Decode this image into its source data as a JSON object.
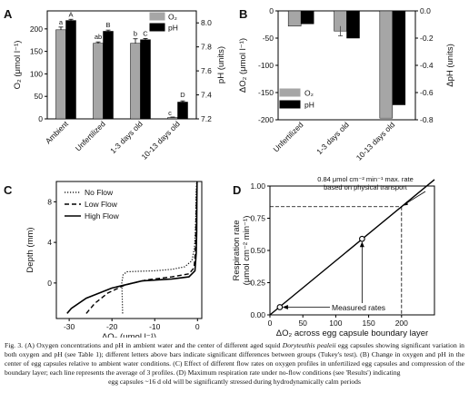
{
  "figure": {
    "panels": {
      "A": {
        "letter": "A"
      },
      "B": {
        "letter": "B"
      },
      "C": {
        "letter": "C"
      },
      "D": {
        "letter": "D"
      }
    }
  },
  "chart_data": [
    {
      "panel": "A",
      "type": "bar",
      "categories": [
        "Ambient",
        "Unfertilized",
        "1-3 days old",
        "10-13 days old"
      ],
      "series": [
        {
          "name": "O₂",
          "values": [
            198,
            168,
            168,
            3
          ],
          "errors": [
            6,
            3,
            10,
            1
          ],
          "letters": [
            "a",
            "ab",
            "b",
            "c"
          ],
          "color": "#a6a6a6",
          "axis": "left"
        },
        {
          "name": "pH",
          "values": [
            8.02,
            7.93,
            7.86,
            7.34
          ],
          "errors": [
            0.01,
            0.01,
            0.01,
            0.01
          ],
          "letters": [
            "A",
            "B",
            "C",
            "D"
          ],
          "color": "#000000",
          "axis": "right"
        }
      ],
      "ylabel": "O₂ (μmol l⁻¹)",
      "ylabel_right": "pH (units)",
      "ylim": [
        0,
        240
      ],
      "ylim_right": [
        7.2,
        8.1
      ],
      "yticks": [
        0,
        50,
        100,
        150,
        200
      ],
      "yticks_right": [
        "7.2",
        "7.4",
        "7.6",
        "7.8",
        "8.0"
      ],
      "legend": [
        "O₂",
        "pH"
      ],
      "legend_position": "top-right"
    },
    {
      "panel": "B",
      "type": "bar",
      "categories": [
        "Unfertilized",
        "1-3 days old",
        "10-13 days old"
      ],
      "series": [
        {
          "name": "O₂",
          "values": [
            -28,
            -37,
            -197
          ],
          "errors": [
            1,
            9,
            1
          ],
          "color": "#a6a6a6",
          "axis": "left"
        },
        {
          "name": "pH",
          "values": [
            -0.095,
            -0.2,
            -0.69
          ],
          "errors": [
            0.004,
            0.004,
            0.004
          ],
          "color": "#000000",
          "axis": "right"
        }
      ],
      "ylabel": "ΔO₂ (μmol l⁻¹)",
      "ylabel_right": "ΔpH (units)",
      "ylim": [
        -200,
        0
      ],
      "ylim_right": [
        -0.8,
        0
      ],
      "yticks": [
        "0",
        "-50",
        "-100",
        "-150",
        "-200"
      ],
      "yticks_right": [
        "0.0",
        "-0.2",
        "-0.4",
        "-0.6",
        "-0.8"
      ],
      "legend": [
        "O₂",
        "pH"
      ],
      "legend_position": "bottom-left"
    },
    {
      "panel": "C",
      "type": "line",
      "xlabel": "ΔO₂ (μmol l⁻¹)",
      "ylabel": "Depth (mm)",
      "xlim": [
        -33,
        1
      ],
      "ylim": [
        -3.5,
        10
      ],
      "xticks": [
        "-30",
        "-20",
        "-10",
        "0"
      ],
      "yticks": [
        "0",
        "4",
        "8"
      ],
      "series": [
        {
          "name": "No Flow",
          "style": "dotted",
          "x": [
            -17.5,
            -17.6,
            -17.7,
            -17.4,
            -16.5,
            -14,
            -10,
            -6,
            -3,
            -1.3,
            -0.7,
            -0.5,
            -0.4,
            -0.35,
            -0.3,
            -0.2
          ],
          "y": [
            -3,
            -1.5,
            0,
            0.8,
            1.1,
            1.15,
            1.2,
            1.35,
            1.6,
            2.2,
            3.5,
            5,
            6.5,
            8,
            9,
            10
          ]
        },
        {
          "name": "Low Flow",
          "style": "dashed",
          "x": [
            -26,
            -24,
            -21,
            -17,
            -12,
            -6,
            -2,
            -0.8,
            -0.5,
            -0.4,
            -0.3,
            -0.2,
            -0.1
          ],
          "y": [
            -3,
            -2,
            -1,
            -0.2,
            0.3,
            0.6,
            0.9,
            1.5,
            3,
            5,
            7,
            9,
            10
          ]
        },
        {
          "name": "High Flow",
          "style": "solid",
          "x": [
            -30.5,
            -29.5,
            -26,
            -20,
            -13,
            -6,
            -2,
            -0.6,
            -0.3,
            -0.2,
            -0.15,
            -0.1
          ],
          "y": [
            -3,
            -2.5,
            -1.5,
            -0.5,
            0.2,
            0.4,
            0.6,
            1.2,
            3,
            5,
            8,
            10
          ]
        }
      ],
      "legend": [
        "No Flow",
        "Low Flow",
        "High Flow"
      ],
      "legend_position": "top-left"
    },
    {
      "panel": "D",
      "type": "line",
      "xlabel": "ΔO₂ across egg capsule boundary layer",
      "ylabel": "Respiration rate (μmol cm⁻² min⁻¹)",
      "xlim": [
        0,
        250
      ],
      "ylim": [
        0,
        1.0
      ],
      "xticks": [
        "0",
        "50",
        "100",
        "150",
        "200"
      ],
      "yticks": [
        "0.00",
        "0.25",
        "0.50",
        "0.75",
        "1.00"
      ],
      "series": [
        {
          "name": "line",
          "x": [
            0,
            250
          ],
          "y": [
            0,
            1.05
          ]
        },
        {
          "name": "Measured rates",
          "x": [
            15,
            140
          ],
          "y": [
            0.06,
            0.59
          ],
          "marker": "open-circle"
        }
      ],
      "reference": {
        "y": 0.84,
        "x": 200
      },
      "annotations": [
        "0.84 μmol cm⁻² min⁻¹ max. rate",
        "based on physical transport",
        "Measured rates"
      ]
    }
  ],
  "caption": {
    "runs": [
      "Fig. 3. (A) Oxygen concentrations and pH in ambient water and the center of different aged squid ",
      "Doryteuthis pealeii",
      " egg capsules showing significant variation in both oxygen and pH (see Table 1); different letters above bars indicate significant differences between groups (Tukey's test). (B) Change in oxygen and pH in the center of egg capsules relative to ambient water conditions. (C) Effect of different flow rates on oxygen profiles in unfertilized egg capsules and compression of the boundary layer; each line represents the average of 3 profiles. (D) Maximum respiration rate under no-flow conditions (see 'Results') indicating ",
      "egg capsules ~16 d old will be significantly stressed during hydrodynamically calm periods"
    ]
  }
}
